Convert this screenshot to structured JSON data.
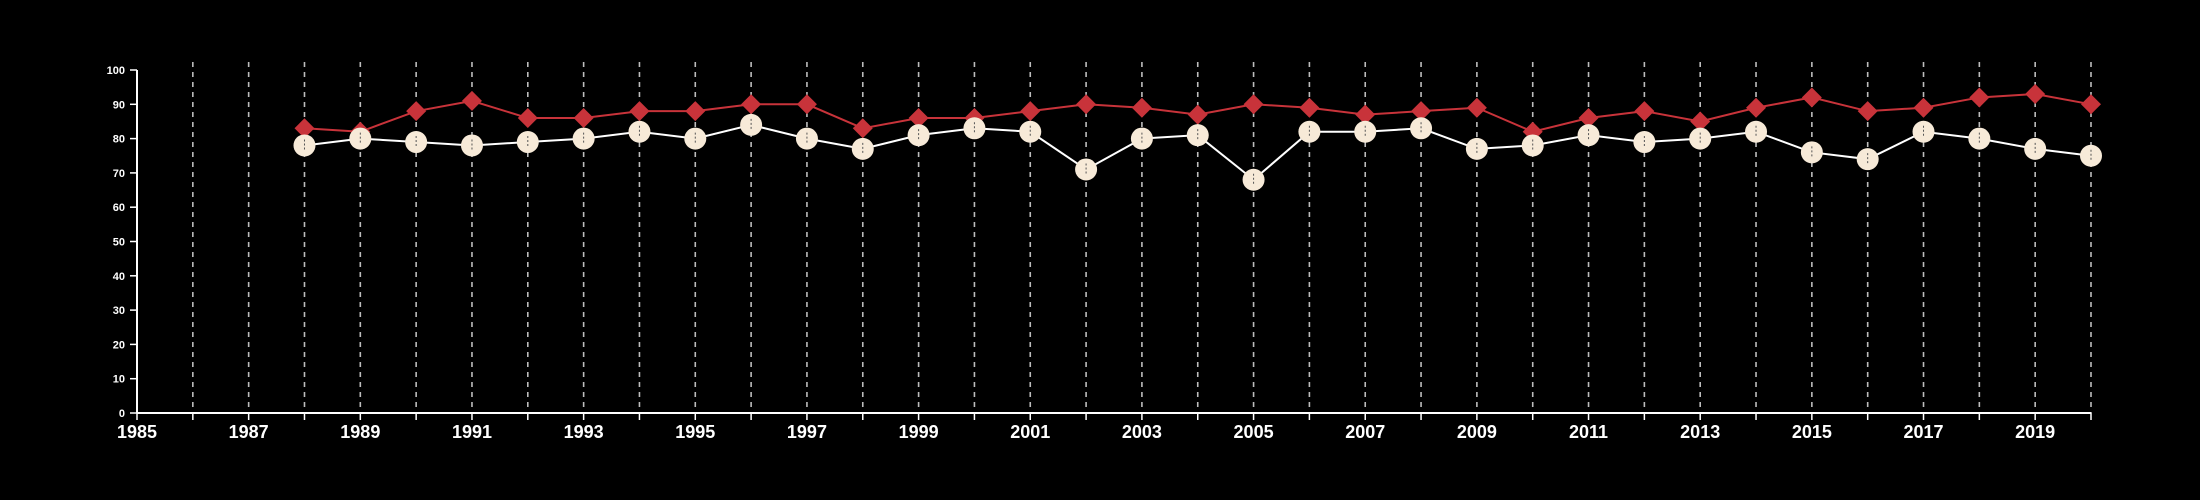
{
  "chart_data": {
    "type": "line",
    "title": "",
    "xlabel": "",
    "ylabel": "",
    "xlim": [
      1985,
      2020
    ],
    "ylim": [
      0,
      100
    ],
    "x_ticks": [
      1985,
      1987,
      1989,
      1991,
      1993,
      1995,
      1997,
      1999,
      2001,
      2003,
      2005,
      2007,
      2009,
      2011,
      2013,
      2015,
      2017,
      2019
    ],
    "y_ticks": [
      0,
      10,
      20,
      30,
      40,
      50,
      60,
      70,
      80,
      90,
      100
    ],
    "vertical_gridlines_every_year": true,
    "background": "#000000",
    "x": [
      1988,
      1989,
      1990,
      1991,
      1992,
      1993,
      1994,
      1995,
      1996,
      1997,
      1998,
      1999,
      2000,
      2001,
      2002,
      2003,
      2004,
      2005,
      2006,
      2007,
      2008,
      2009,
      2010,
      2011,
      2012,
      2013,
      2014,
      2015,
      2016,
      2017,
      2018,
      2019,
      2020
    ],
    "series": [
      {
        "marker": "diamond",
        "color": "#c8333a",
        "values": [
          83,
          82,
          88,
          91,
          86,
          86,
          88,
          88,
          90,
          90,
          83,
          86,
          86,
          88,
          90,
          89,
          87,
          90,
          89,
          87,
          88,
          89,
          82,
          86,
          88,
          85,
          89,
          92,
          88,
          89,
          92,
          93,
          90
        ]
      },
      {
        "marker": "circle",
        "color": "#f7ead8",
        "line_color": "#ffffff",
        "values": [
          78,
          80,
          79,
          78,
          79,
          80,
          82,
          80,
          84,
          80,
          77,
          81,
          83,
          82,
          71,
          80,
          81,
          68,
          82,
          82,
          83,
          77,
          78,
          81,
          79,
          80,
          82,
          76,
          74,
          82,
          80,
          77,
          75
        ]
      }
    ]
  }
}
